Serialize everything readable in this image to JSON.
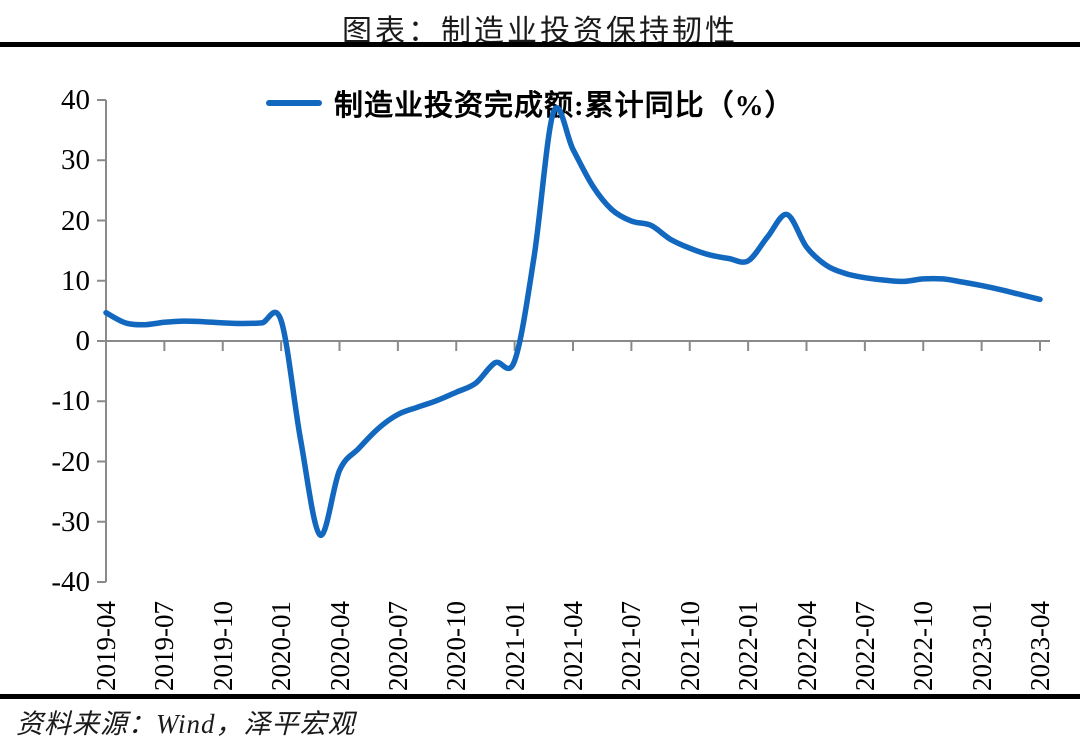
{
  "page": {
    "title": "图表：制造业投资保持韧性",
    "source_note": "资料来源：Wind，泽平宏观"
  },
  "chart_data": {
    "type": "line",
    "title": "图表：制造业投资保持韧性",
    "legend": "制造业投资完成额:累计同比（%）",
    "legend_position": "top",
    "grid": false,
    "line_color": "#1268BE",
    "axis_color": "#8A8A8A",
    "ylim": [
      -40,
      40
    ],
    "yticks": [
      40,
      30,
      20,
      10,
      0,
      -10,
      -20,
      -30,
      -40
    ],
    "xtick_labels": [
      "2019-04",
      "2019-07",
      "2019-10",
      "2020-01",
      "2020-04",
      "2020-07",
      "2020-10",
      "2021-01",
      "2021-04",
      "2021-07",
      "2021-10",
      "2022-01",
      "2022-04",
      "2022-07",
      "2022-10",
      "2023-01",
      "2023-04"
    ],
    "x": [
      "2019-04",
      "2019-05",
      "2019-06",
      "2019-07",
      "2019-08",
      "2019-09",
      "2019-10",
      "2019-11",
      "2019-12",
      "2020-01",
      "2020-02",
      "2020-03",
      "2020-04",
      "2020-05",
      "2020-06",
      "2020-07",
      "2020-08",
      "2020-09",
      "2020-10",
      "2020-11",
      "2020-12",
      "2021-01",
      "2021-02",
      "2021-03",
      "2021-04",
      "2021-05",
      "2021-06",
      "2021-07",
      "2021-08",
      "2021-09",
      "2021-10",
      "2021-11",
      "2021-12",
      "2022-01",
      "2022-02",
      "2022-03",
      "2022-04",
      "2022-05",
      "2022-06",
      "2022-07",
      "2022-08",
      "2022-09",
      "2022-10",
      "2022-11",
      "2022-12",
      "2023-01",
      "2023-02",
      "2023-03",
      "2023-04"
    ],
    "values": [
      4.7,
      3.0,
      2.7,
      3.1,
      3.3,
      3.2,
      3.0,
      2.9,
      3.0,
      3.4,
      -16.4,
      -32.2,
      -21.5,
      -17.8,
      -14.5,
      -12.2,
      -11.0,
      -9.9,
      -8.5,
      -7.0,
      -3.6,
      -3.3,
      14.0,
      38.0,
      31.8,
      25.8,
      21.8,
      19.9,
      19.2,
      16.9,
      15.4,
      14.3,
      13.7,
      13.3,
      17.3,
      21.0,
      15.6,
      12.6,
      11.2,
      10.5,
      10.1,
      9.9,
      10.3,
      10.3,
      9.8,
      9.2,
      8.5,
      7.7,
      6.9
    ]
  }
}
